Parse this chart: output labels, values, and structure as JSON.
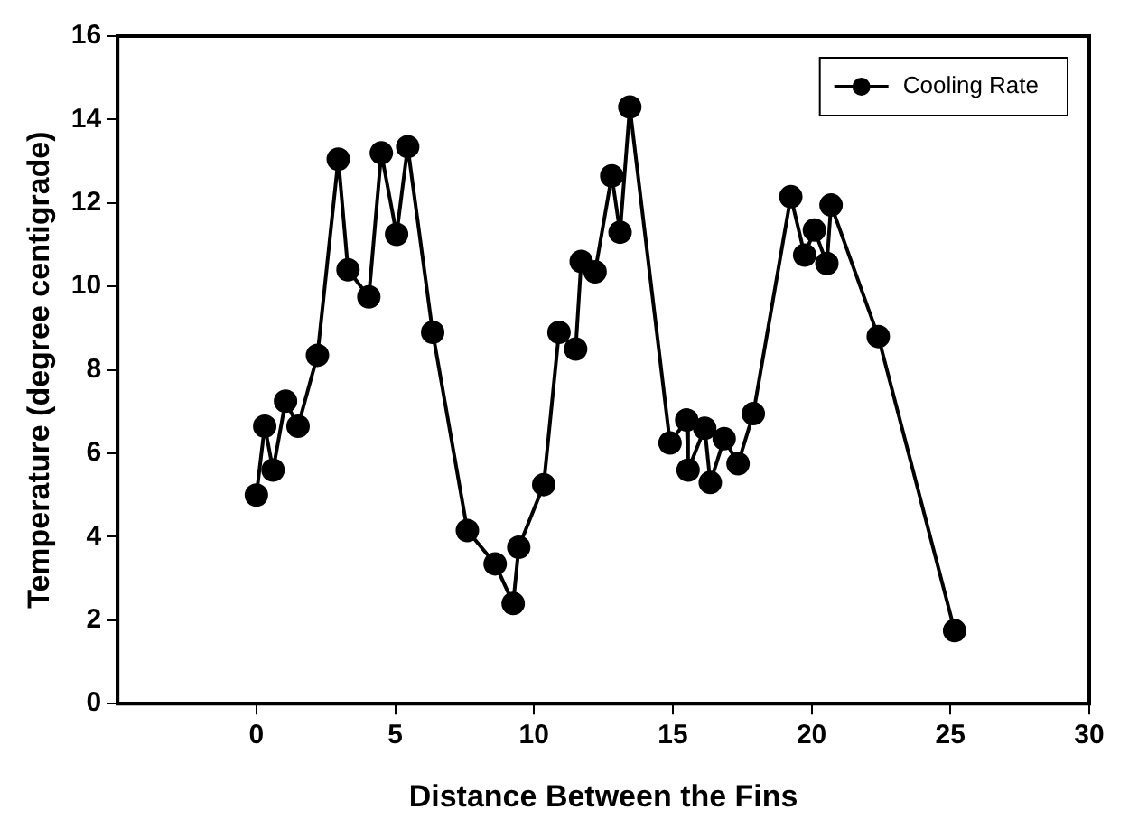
{
  "chart_data": {
    "type": "line",
    "xlabel": "Distance Between the Fins",
    "ylabel": "Temperature (degree centigrade)",
    "xlim": [
      -5,
      30
    ],
    "xticks": [
      0,
      5,
      10,
      15,
      20,
      25,
      30
    ],
    "ylim": [
      0,
      16
    ],
    "yticks": [
      0,
      2,
      4,
      6,
      8,
      10,
      12,
      14,
      16
    ],
    "grid": false,
    "legend": "top right",
    "marker": "circle",
    "line_style": "solid",
    "series": [
      {
        "name": "Cooling Rate",
        "color": "#000000",
        "x": [
          0,
          0.3,
          0.6,
          1.05,
          1.5,
          2.2,
          2.95,
          3.3,
          4.05,
          4.5,
          5.05,
          5.45,
          6.35,
          7.6,
          8.6,
          9.25,
          9.45,
          10.35,
          10.9,
          11.5,
          11.7,
          12.2,
          12.8,
          13.1,
          13.45,
          14.9,
          15.5,
          15.55,
          16.15,
          16.35,
          16.85,
          17.35,
          17.9,
          19.25,
          19.75,
          20.1,
          20.55,
          20.7,
          22.4,
          25.15
        ],
        "values": [
          5.0,
          6.65,
          5.6,
          7.25,
          6.65,
          8.35,
          13.05,
          10.4,
          9.75,
          13.2,
          11.25,
          13.35,
          8.9,
          4.15,
          3.35,
          2.4,
          3.75,
          5.25,
          8.9,
          8.5,
          10.6,
          10.35,
          12.65,
          11.3,
          14.3,
          6.25,
          6.8,
          5.6,
          6.6,
          5.3,
          6.35,
          5.75,
          6.95,
          12.15,
          10.75,
          11.35,
          10.55,
          11.95,
          8.8,
          1.75
        ]
      }
    ]
  }
}
